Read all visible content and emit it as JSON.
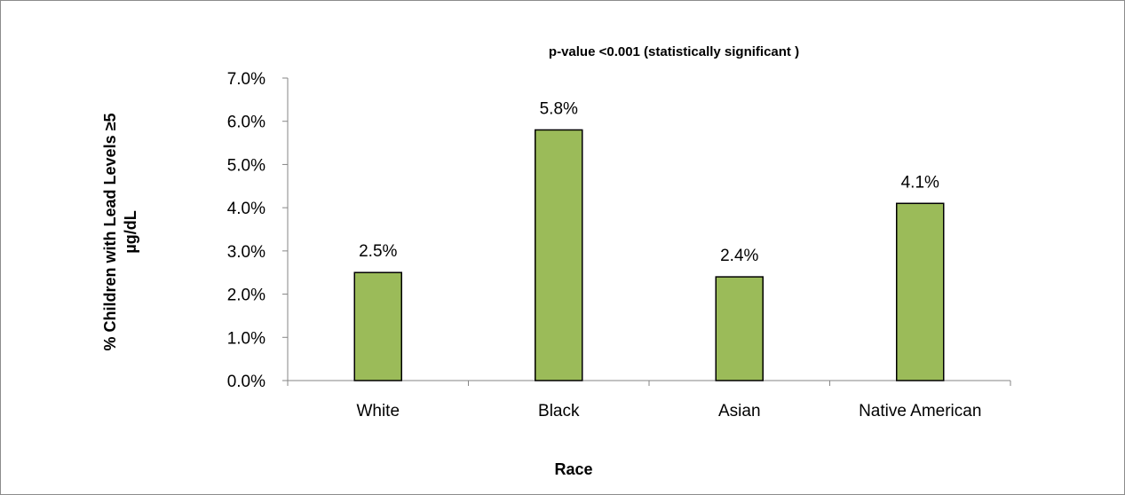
{
  "chart_data": {
    "type": "bar",
    "title": "p-value <0.001 (statistically significant )",
    "xlabel": "Race",
    "ylabel_line1": "% Children with Lead Levels ≥5",
    "ylabel_line2": "µg/dL",
    "categories": [
      "White",
      "Black",
      "Asian",
      "Native American"
    ],
    "values": [
      0.025,
      0.058,
      0.024,
      0.041
    ],
    "data_labels": [
      "2.5%",
      "5.8%",
      "2.4%",
      "4.1%"
    ],
    "ylim": [
      0,
      0.07
    ],
    "yticks": [
      0,
      0.01,
      0.02,
      0.03,
      0.04,
      0.05,
      0.06,
      0.07
    ],
    "ytick_labels": [
      "0.0%",
      "1.0%",
      "2.0%",
      "3.0%",
      "4.0%",
      "5.0%",
      "6.0%",
      "7.0%"
    ],
    "grid": false,
    "legend": "none",
    "colors": {
      "bar_fill": "#9bbb59",
      "bar_stroke": "#000000",
      "axis": "#868686",
      "border": "#8c8c8c"
    }
  }
}
